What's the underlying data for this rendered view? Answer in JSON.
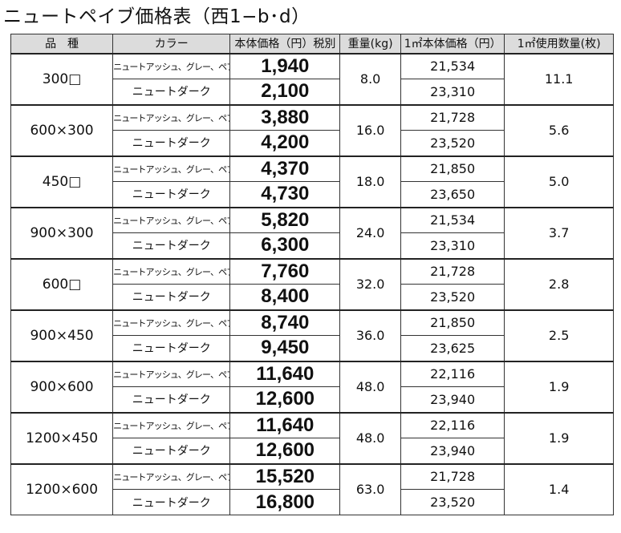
{
  "title": "ニュートペイブ価格表（西1−b･d）",
  "headers": {
    "product": "品　種",
    "color": "カラー",
    "price": "本体価格（円）税別",
    "weight": "重量(kg)",
    "per_m2_price": "1㎡本体価格（円）",
    "per_m2_qty": "1㎡使用数量(枚)"
  },
  "colors": {
    "light": "ニュートアッシュ、グレー、ペブル",
    "dark": "ニュートダーク"
  },
  "rows": [
    {
      "size": "300□",
      "light_price": "1,940",
      "dark_price": "2,100",
      "weight": "8.0",
      "light_m2": "21,534",
      "dark_m2": "23,310",
      "qty": "11.1"
    },
    {
      "size": "600×300",
      "light_price": "3,880",
      "dark_price": "4,200",
      "weight": "16.0",
      "light_m2": "21,728",
      "dark_m2": "23,520",
      "qty": "5.6"
    },
    {
      "size": "450□",
      "light_price": "4,370",
      "dark_price": "4,730",
      "weight": "18.0",
      "light_m2": "21,850",
      "dark_m2": "23,650",
      "qty": "5.0"
    },
    {
      "size": "900×300",
      "light_price": "5,820",
      "dark_price": "6,300",
      "weight": "24.0",
      "light_m2": "21,534",
      "dark_m2": "23,310",
      "qty": "3.7"
    },
    {
      "size": "600□",
      "light_price": "7,760",
      "dark_price": "8,400",
      "weight": "32.0",
      "light_m2": "21,728",
      "dark_m2": "23,520",
      "qty": "2.8"
    },
    {
      "size": "900×450",
      "light_price": "8,740",
      "dark_price": "9,450",
      "weight": "36.0",
      "light_m2": "21,850",
      "dark_m2": "23,625",
      "qty": "2.5"
    },
    {
      "size": "900×600",
      "light_price": "11,640",
      "dark_price": "12,600",
      "weight": "48.0",
      "light_m2": "22,116",
      "dark_m2": "23,940",
      "qty": "1.9"
    },
    {
      "size": "1200×450",
      "light_price": "11,640",
      "dark_price": "12,600",
      "weight": "48.0",
      "light_m2": "22,116",
      "dark_m2": "23,940",
      "qty": "1.9"
    },
    {
      "size": "1200×600",
      "light_price": "15,520",
      "dark_price": "16,800",
      "weight": "63.0",
      "light_m2": "21,728",
      "dark_m2": "23,520",
      "qty": "1.4"
    }
  ]
}
